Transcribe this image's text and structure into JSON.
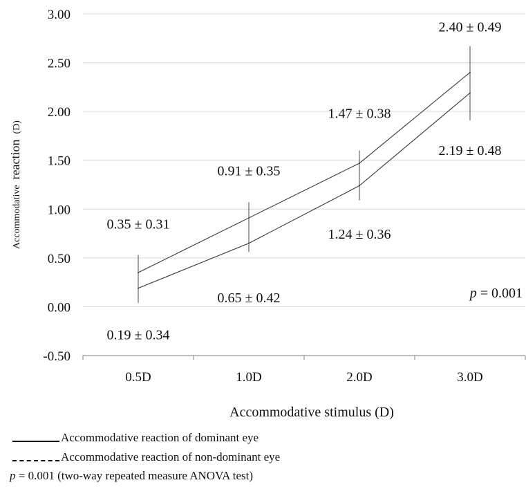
{
  "chart_data": {
    "type": "line",
    "categories": [
      "0.5D",
      "1.0D",
      "2.0D",
      "3.0D"
    ],
    "ylim": [
      -0.5,
      3.0
    ],
    "yticks": [
      "3.00",
      "2.50",
      "2.00",
      "1.50",
      "1.00",
      "0.50",
      "0.00",
      "-0.50"
    ],
    "ylabel_small": "Accommodative",
    "ylabel_large": "reaction",
    "ylabel_unit": "(D)",
    "xlabel": "Accommodative stimulus (D)",
    "grid": "horizontal",
    "series": [
      {
        "name": "Accommodative reaction of dominant eye",
        "values": [
          0.35,
          0.91,
          1.47,
          2.4
        ],
        "sd": [
          0.31,
          0.35,
          0.38,
          0.49
        ],
        "labels": [
          "0.35 ± 0.31",
          "0.91 ± 0.35",
          "1.47 ± 0.38",
          "2.40 ± 0.49"
        ]
      },
      {
        "name": "Accommodative reaction of non-dominant eye",
        "values": [
          0.19,
          0.65,
          1.24,
          2.19
        ],
        "sd": [
          0.34,
          0.42,
          0.36,
          0.48
        ],
        "labels": [
          "0.19 ± 0.34",
          "0.65 ± 0.42",
          "1.24 ± 0.36",
          "2.19 ± 0.48"
        ]
      }
    ],
    "annotation": {
      "p": "p",
      "value": " = 0.001"
    }
  },
  "legend": {
    "items": [
      {
        "label": "Accommodative reaction of dominant eye",
        "style": "solid"
      },
      {
        "label": "Accommodative reaction of non-dominant eye",
        "style": "dashed"
      }
    ]
  },
  "footnote": {
    "p": "p",
    "text": " = 0.001 (two-way repeated measure ANOVA test)"
  },
  "colors": {
    "line": "#444444",
    "grid": "#d9d9d9",
    "axis": "#7f7f7f",
    "text": "#111111"
  }
}
